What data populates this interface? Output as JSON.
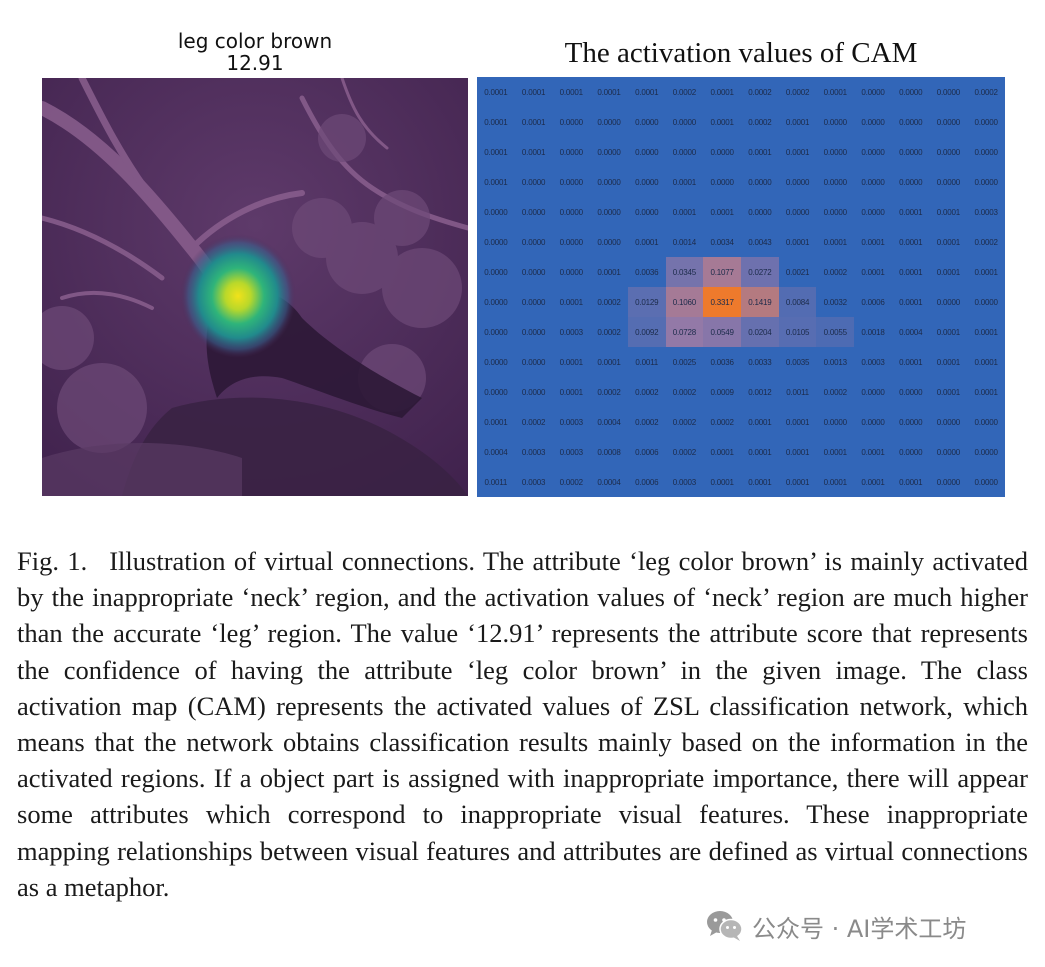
{
  "left_panel": {
    "title_line1": "leg color brown",
    "title_line2": "12.91",
    "image_description": "Dimmed purple photograph of a bird among branches with a CAM heatmap blob centered on the neck region"
  },
  "chart_data": {
    "type": "heatmap",
    "title": "The activation values of CAM",
    "rows": 14,
    "cols": 14,
    "values": [
      [
        "0.0001",
        "0.0001",
        "0.0001",
        "0.0001",
        "0.0001",
        "0.0002",
        "0.0001",
        "0.0002",
        "0.0002",
        "0.0001",
        "0.0000",
        "0.0000",
        "0.0000",
        "0.0002"
      ],
      [
        "0.0001",
        "0.0001",
        "0.0000",
        "0.0000",
        "0.0000",
        "0.0000",
        "0.0001",
        "0.0002",
        "0.0001",
        "0.0000",
        "0.0000",
        "0.0000",
        "0.0000",
        "0.0000"
      ],
      [
        "0.0001",
        "0.0001",
        "0.0000",
        "0.0000",
        "0.0000",
        "0.0000",
        "0.0000",
        "0.0001",
        "0.0001",
        "0.0000",
        "0.0000",
        "0.0000",
        "0.0000",
        "0.0000"
      ],
      [
        "0.0001",
        "0.0000",
        "0.0000",
        "0.0000",
        "0.0000",
        "0.0001",
        "0.0000",
        "0.0000",
        "0.0000",
        "0.0000",
        "0.0000",
        "0.0000",
        "0.0000",
        "0.0000"
      ],
      [
        "0.0000",
        "0.0000",
        "0.0000",
        "0.0000",
        "0.0000",
        "0.0001",
        "0.0001",
        "0.0000",
        "0.0000",
        "0.0000",
        "0.0000",
        "0.0001",
        "0.0001",
        "0.0003"
      ],
      [
        "0.0000",
        "0.0000",
        "0.0000",
        "0.0000",
        "0.0001",
        "0.0014",
        "0.0034",
        "0.0043",
        "0.0001",
        "0.0001",
        "0.0001",
        "0.0001",
        "0.0001",
        "0.0002"
      ],
      [
        "0.0000",
        "0.0000",
        "0.0000",
        "0.0001",
        "0.0036",
        "0.0345",
        "0.1077",
        "0.0272",
        "0.0021",
        "0.0002",
        "0.0001",
        "0.0001",
        "0.0001",
        "0.0001"
      ],
      [
        "0.0000",
        "0.0000",
        "0.0001",
        "0.0002",
        "0.0129",
        "0.1060",
        "0.3317",
        "0.1419",
        "0.0084",
        "0.0032",
        "0.0006",
        "0.0001",
        "0.0000",
        "0.0000"
      ],
      [
        "0.0000",
        "0.0000",
        "0.0003",
        "0.0002",
        "0.0092",
        "0.0728",
        "0.0549",
        "0.0204",
        "0.0105",
        "0.0055",
        "0.0018",
        "0.0004",
        "0.0001",
        "0.0001"
      ],
      [
        "0.0000",
        "0.0000",
        "0.0001",
        "0.0001",
        "0.0011",
        "0.0025",
        "0.0036",
        "0.0033",
        "0.0035",
        "0.0013",
        "0.0003",
        "0.0001",
        "0.0001",
        "0.0001"
      ],
      [
        "0.0000",
        "0.0000",
        "0.0001",
        "0.0002",
        "0.0002",
        "0.0002",
        "0.0009",
        "0.0012",
        "0.0011",
        "0.0002",
        "0.0000",
        "0.0000",
        "0.0001",
        "0.0001"
      ],
      [
        "0.0001",
        "0.0002",
        "0.0003",
        "0.0004",
        "0.0002",
        "0.0002",
        "0.0002",
        "0.0001",
        "0.0001",
        "0.0000",
        "0.0000",
        "0.0000",
        "0.0000",
        "0.0000"
      ],
      [
        "0.0004",
        "0.0003",
        "0.0003",
        "0.0008",
        "0.0006",
        "0.0002",
        "0.0001",
        "0.0001",
        "0.0001",
        "0.0001",
        "0.0001",
        "0.0000",
        "0.0000",
        "0.0000"
      ],
      [
        "0.0011",
        "0.0003",
        "0.0002",
        "0.0004",
        "0.0006",
        "0.0003",
        "0.0001",
        "0.0001",
        "0.0001",
        "0.0001",
        "0.0001",
        "0.0001",
        "0.0000",
        "0.0000"
      ]
    ],
    "color_low": "#3266b8",
    "color_mid": "#9a7aa6",
    "color_high": "#ee7a2c"
  },
  "caption": {
    "label": "Fig. 1.",
    "text": "Illustration of virtual connections. The attribute ‘leg color brown’ is mainly activated by the inappropriate ‘neck’ region, and the activation values of ‘neck’ region are much higher than the accurate ‘leg’ region. The value ‘12.91’ represents the attribute score that represents the confidence of having the attribute ‘leg color brown’ in the given image. The class activation map (CAM) represents the activated values of ZSL classification network, which means that the network obtains classification results mainly based on the information in the activated regions. If a object part is assigned with inappropriate importance, there will appear some attributes which correspond to inappropriate visual features. These inappropriate mapping relationships between visual features and attributes are defined as virtual connections as a metaphor."
  },
  "watermark": {
    "text": "公众号 · AI学术工坊",
    "icon": "wechat-icon"
  }
}
